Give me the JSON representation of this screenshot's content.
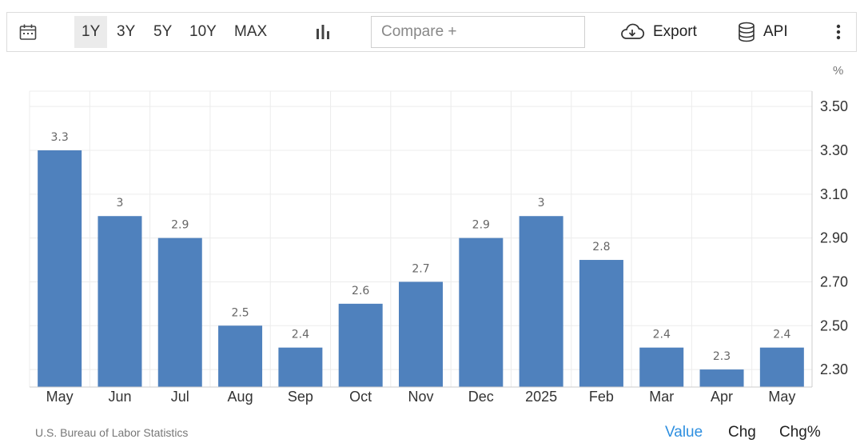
{
  "toolbar": {
    "range_options": [
      "1Y",
      "3Y",
      "5Y",
      "10Y",
      "MAX"
    ],
    "active_range": "1Y",
    "compare_placeholder": "Compare +",
    "export_label": "Export",
    "api_label": "API"
  },
  "chart_data": {
    "type": "bar",
    "categories": [
      "May",
      "Jun",
      "Jul",
      "Aug",
      "Sep",
      "Oct",
      "Nov",
      "Dec",
      "2025",
      "Feb",
      "Mar",
      "Apr",
      "May"
    ],
    "values": [
      3.3,
      3,
      2.9,
      2.5,
      2.4,
      2.6,
      2.7,
      2.9,
      3,
      2.8,
      2.4,
      2.3,
      2.4
    ],
    "ylim": [
      2.22,
      3.57
    ],
    "yticks": [
      "3.50",
      "3.30",
      "3.10",
      "2.90",
      "2.70",
      "2.50",
      "2.30"
    ],
    "unit_label": "%",
    "bar_color": "#4f81bd",
    "grid": true,
    "axis_position": "right"
  },
  "footer": {
    "source": "U.S. Bureau of Labor Statistics",
    "tabs": [
      "Value",
      "Chg",
      "Chg%"
    ],
    "active_tab": "Value",
    "active_color": "#2e8fe0"
  }
}
